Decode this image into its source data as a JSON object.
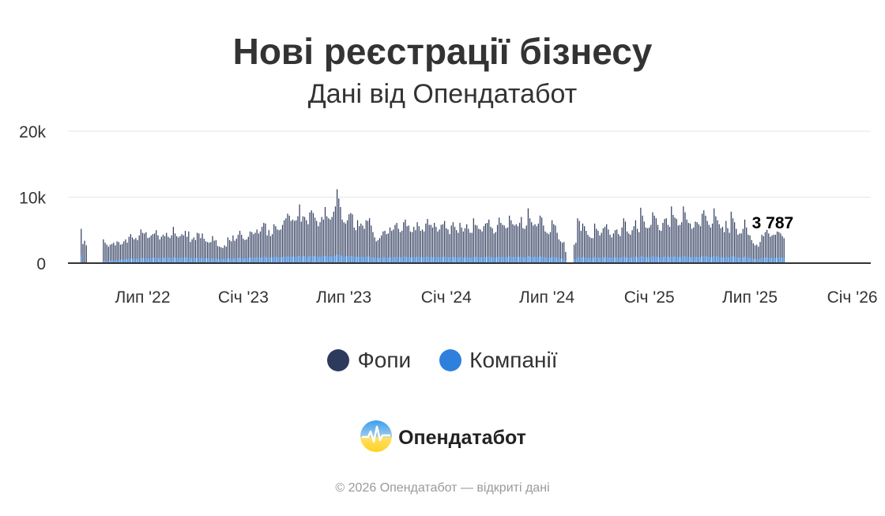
{
  "header": {
    "title": "Нові реєстрації бізнесу",
    "subtitle": "Дані від Опендатабот"
  },
  "legend": {
    "items": [
      {
        "label": "Фопи",
        "color": "#2d3a5c"
      },
      {
        "label": "Компанії",
        "color": "#2f80dd"
      }
    ]
  },
  "brand": {
    "name": "Опендатабот",
    "icon": "opendatabot-logo-icon"
  },
  "footer": {
    "text": "© 2026 Опендатабот — відкриті дані"
  },
  "chart_data": {
    "type": "bar",
    "stacked": false,
    "ylim": [
      0,
      20000
    ],
    "y_ticks": [
      {
        "value": 0,
        "label": "0"
      },
      {
        "value": 10000,
        "label": "10k"
      },
      {
        "value": 20000,
        "label": "20k"
      }
    ],
    "x_ticks": [
      {
        "index": 41,
        "label": "Лип '22"
      },
      {
        "index": 100,
        "label": "Січ '23"
      },
      {
        "index": 159,
        "label": "Лип '23"
      },
      {
        "index": 219,
        "label": "Січ '24"
      },
      {
        "index": 278,
        "label": "Лип '24"
      },
      {
        "index": 338,
        "label": "Січ '25"
      },
      {
        "index": 397,
        "label": "Лип '25"
      },
      {
        "index": 457,
        "label": "Січ '26"
      }
    ],
    "grid": true,
    "legend_position": "bottom",
    "last_value_label": "3 787",
    "n_bars": 467,
    "series": [
      {
        "name": "Фопи",
        "color": "#2d3a5c",
        "values": [
          0,
          0,
          0,
          0,
          0,
          5200,
          2900,
          3400,
          2700,
          0,
          0,
          0,
          0,
          0,
          0,
          0,
          0,
          0,
          3600,
          3100,
          2800,
          2500,
          2800,
          2900,
          3100,
          2700,
          3300,
          3200,
          2800,
          2900,
          3300,
          3600,
          3100,
          4000,
          4400,
          3900,
          3600,
          3800,
          3500,
          4200,
          5100,
          4600,
          4500,
          4700,
          3800,
          3900,
          4200,
          4400,
          4500,
          5000,
          4200,
          3600,
          4000,
          4300,
          4100,
          4600,
          4000,
          3800,
          4200,
          5500,
          4500,
          4100,
          3900,
          4100,
          4400,
          4200,
          4900,
          4000,
          4800,
          3200,
          3600,
          3900,
          3500,
          4600,
          4500,
          3800,
          4500,
          3700,
          3300,
          3200,
          3100,
          3200,
          4100,
          3400,
          3500,
          2600,
          2500,
          2400,
          2300,
          2700,
          2500,
          3900,
          3500,
          3300,
          4200,
          3400,
          3700,
          4300,
          4900,
          4300,
          3700,
          3500,
          3600,
          4000,
          4800,
          4700,
          4400,
          4600,
          5100,
          4500,
          4800,
          5500,
          6100,
          6000,
          4200,
          5000,
          4100,
          4400,
          5900,
          5600,
          5100,
          5000,
          5100,
          5800,
          6500,
          6800,
          7500,
          7200,
          6400,
          6600,
          6400,
          6500,
          7100,
          8900,
          6300,
          7100,
          7000,
          6500,
          5900,
          7700,
          8000,
          7600,
          6900,
          6400,
          5600,
          6200,
          7000,
          6600,
          8500,
          7100,
          6800,
          6600,
          7000,
          7800,
          8600,
          11200,
          9800,
          8500,
          6600,
          6200,
          6000,
          6500,
          7400,
          7600,
          7400,
          5400,
          5000,
          6500,
          5600,
          6000,
          5700,
          5200,
          6500,
          6400,
          6800,
          5700,
          4700,
          3900,
          3300,
          3500,
          3800,
          4200,
          4800,
          4900,
          4400,
          4500,
          5400,
          4900,
          5100,
          5800,
          6100,
          5200,
          4700,
          4900,
          6200,
          6600,
          5600,
          5700,
          4800,
          4700,
          5500,
          5000,
          6200,
          5600,
          4900,
          5100,
          4800,
          6000,
          6700,
          5800,
          5800,
          5400,
          6100,
          5500,
          4800,
          5100,
          5800,
          5900,
          6400,
          5300,
          5100,
          4400,
          5700,
          6200,
          5500,
          5000,
          4600,
          6100,
          5400,
          4800,
          5300,
          5900,
          5200,
          4600,
          4600,
          6800,
          5800,
          5700,
          5200,
          5100,
          4800,
          5600,
          6000,
          6100,
          6600,
          5500,
          5300,
          4500,
          4700,
          5800,
          6900,
          6100,
          5800,
          5700,
          5300,
          5400,
          7200,
          6500,
          5900,
          5700,
          5900,
          5600,
          6100,
          7000,
          5300,
          5200,
          5700,
          8300,
          6800,
          6200,
          5700,
          5900,
          5600,
          6000,
          7200,
          6900,
          5700,
          4800,
          4600,
          4400,
          4700,
          6500,
          5900,
          5700,
          4600,
          3600,
          3300,
          3100,
          3200,
          1700,
          0,
          0,
          0,
          0,
          2800,
          3100,
          6800,
          6400,
          4900,
          6000,
          5600,
          4900,
          4300,
          4000,
          3800,
          3800,
          6000,
          5200,
          4900,
          4200,
          4600,
          5300,
          5500,
          5900,
          5100,
          4300,
          3900,
          4500,
          5000,
          5100,
          4400,
          4100,
          5400,
          6800,
          6300,
          4800,
          4500,
          4300,
          5000,
          5600,
          6500,
          5200,
          4700,
          8400,
          7200,
          6300,
          5400,
          5300,
          5400,
          5800,
          7700,
          7200,
          6800,
          5800,
          5000,
          4900,
          6100,
          6700,
          6800,
          5800,
          5500,
          8600,
          7300,
          6900,
          6700,
          5700,
          5800,
          6200,
          8600,
          7700,
          6600,
          6100,
          6000,
          5200,
          5400,
          6300,
          6200,
          5900,
          5600,
          7500,
          8000,
          7200,
          6400,
          5800,
          5400,
          6000,
          8300,
          7100,
          6500,
          5900,
          5300,
          5500,
          4700,
          6400,
          5300,
          4600,
          7800,
          6800,
          6200,
          5200,
          4300,
          4500,
          4500,
          5200,
          6600,
          5400,
          4300,
          4200,
          3500,
          3000,
          2700,
          2800,
          2500,
          3200,
          4300,
          4100,
          4700,
          5300,
          4500,
          4000,
          4200,
          4300,
          4300,
          4800,
          4700,
          4500,
          4100,
          3787,
          0,
          0,
          0,
          0,
          0,
          0
        ]
      },
      {
        "name": "Компанії",
        "color": "#2f80dd",
        "values": [
          0,
          0,
          0,
          0,
          0,
          1200,
          0,
          0,
          0,
          0,
          0,
          0,
          0,
          0,
          0,
          0,
          0,
          0,
          400,
          400,
          350,
          400,
          400,
          450,
          450,
          400,
          450,
          500,
          500,
          550,
          600,
          650,
          600,
          650,
          700,
          700,
          650,
          650,
          650,
          700,
          800,
          800,
          750,
          800,
          700,
          750,
          750,
          800,
          850,
          850,
          800,
          750,
          800,
          800,
          800,
          850,
          850,
          800,
          800,
          900,
          850,
          850,
          800,
          800,
          850,
          850,
          900,
          850,
          850,
          750,
          750,
          800,
          750,
          800,
          800,
          750,
          800,
          800,
          750,
          750,
          700,
          700,
          750,
          700,
          700,
          650,
          650,
          650,
          650,
          650,
          650,
          750,
          700,
          700,
          750,
          700,
          750,
          800,
          850,
          800,
          750,
          750,
          750,
          800,
          850,
          850,
          850,
          850,
          900,
          850,
          850,
          900,
          950,
          950,
          850,
          900,
          850,
          850,
          950,
          950,
          900,
          900,
          900,
          950,
          1000,
          1000,
          1050,
          1000,
          1000,
          1000,
          1000,
          1000,
          1050,
          1100,
          1000,
          1050,
          1050,
          1000,
          950,
          1100,
          1100,
          1100,
          1050,
          1000,
          950,
          1000,
          1050,
          1050,
          1150,
          1100,
          1050,
          1050,
          1050,
          1100,
          1150,
          1300,
          1250,
          1200,
          1050,
          1000,
          1000,
          1050,
          1100,
          1100,
          1100,
          1000,
          950,
          1000,
          950,
          1000,
          950,
          950,
          1000,
          1000,
          1000,
          950,
          900,
          850,
          800,
          800,
          800,
          850,
          900,
          900,
          850,
          850,
          900,
          900,
          900,
          950,
          1000,
          950,
          900,
          900,
          1000,
          1000,
          950,
          950,
          900,
          900,
          950,
          900,
          1000,
          950,
          900,
          900,
          900,
          950,
          1000,
          950,
          950,
          900,
          950,
          950,
          900,
          900,
          950,
          950,
          1000,
          950,
          900,
          850,
          950,
          950,
          900,
          900,
          850,
          950,
          900,
          850,
          900,
          950,
          900,
          850,
          850,
          1000,
          950,
          950,
          900,
          900,
          900,
          950,
          950,
          950,
          1000,
          900,
          900,
          850,
          850,
          950,
          1000,
          950,
          950,
          950,
          900,
          900,
          1050,
          1000,
          950,
          950,
          950,
          950,
          950,
          1000,
          900,
          900,
          950,
          1100,
          1000,
          950,
          950,
          950,
          950,
          950,
          1050,
          1000,
          950,
          900,
          850,
          850,
          850,
          950,
          950,
          900,
          850,
          750,
          700,
          700,
          700,
          450,
          0,
          0,
          0,
          0,
          600,
          650,
          900,
          900,
          850,
          950,
          900,
          850,
          800,
          800,
          750,
          750,
          950,
          900,
          850,
          800,
          850,
          900,
          900,
          950,
          900,
          850,
          800,
          850,
          900,
          900,
          850,
          800,
          900,
          1000,
          950,
          850,
          850,
          800,
          900,
          950,
          1000,
          900,
          850,
          1050,
          1000,
          950,
          900,
          900,
          900,
          950,
          1050,
          1000,
          1000,
          950,
          900,
          900,
          950,
          1000,
          1000,
          950,
          900,
          1100,
          1000,
          1000,
          1000,
          950,
          950,
          950,
          1100,
          1050,
          1000,
          950,
          950,
          900,
          900,
          950,
          950,
          950,
          900,
          1050,
          1100,
          1050,
          1000,
          950,
          900,
          950,
          1100,
          1050,
          1000,
          950,
          900,
          900,
          850,
          1000,
          900,
          850,
          1100,
          1050,
          1000,
          900,
          850,
          850,
          850,
          900,
          1000,
          900,
          850,
          800,
          750,
          700,
          650,
          650,
          600,
          700,
          850,
          800,
          850,
          900,
          850,
          800,
          800,
          800,
          800,
          850,
          850,
          850,
          800,
          800,
          0,
          0,
          0,
          0,
          0,
          0
        ]
      }
    ]
  }
}
